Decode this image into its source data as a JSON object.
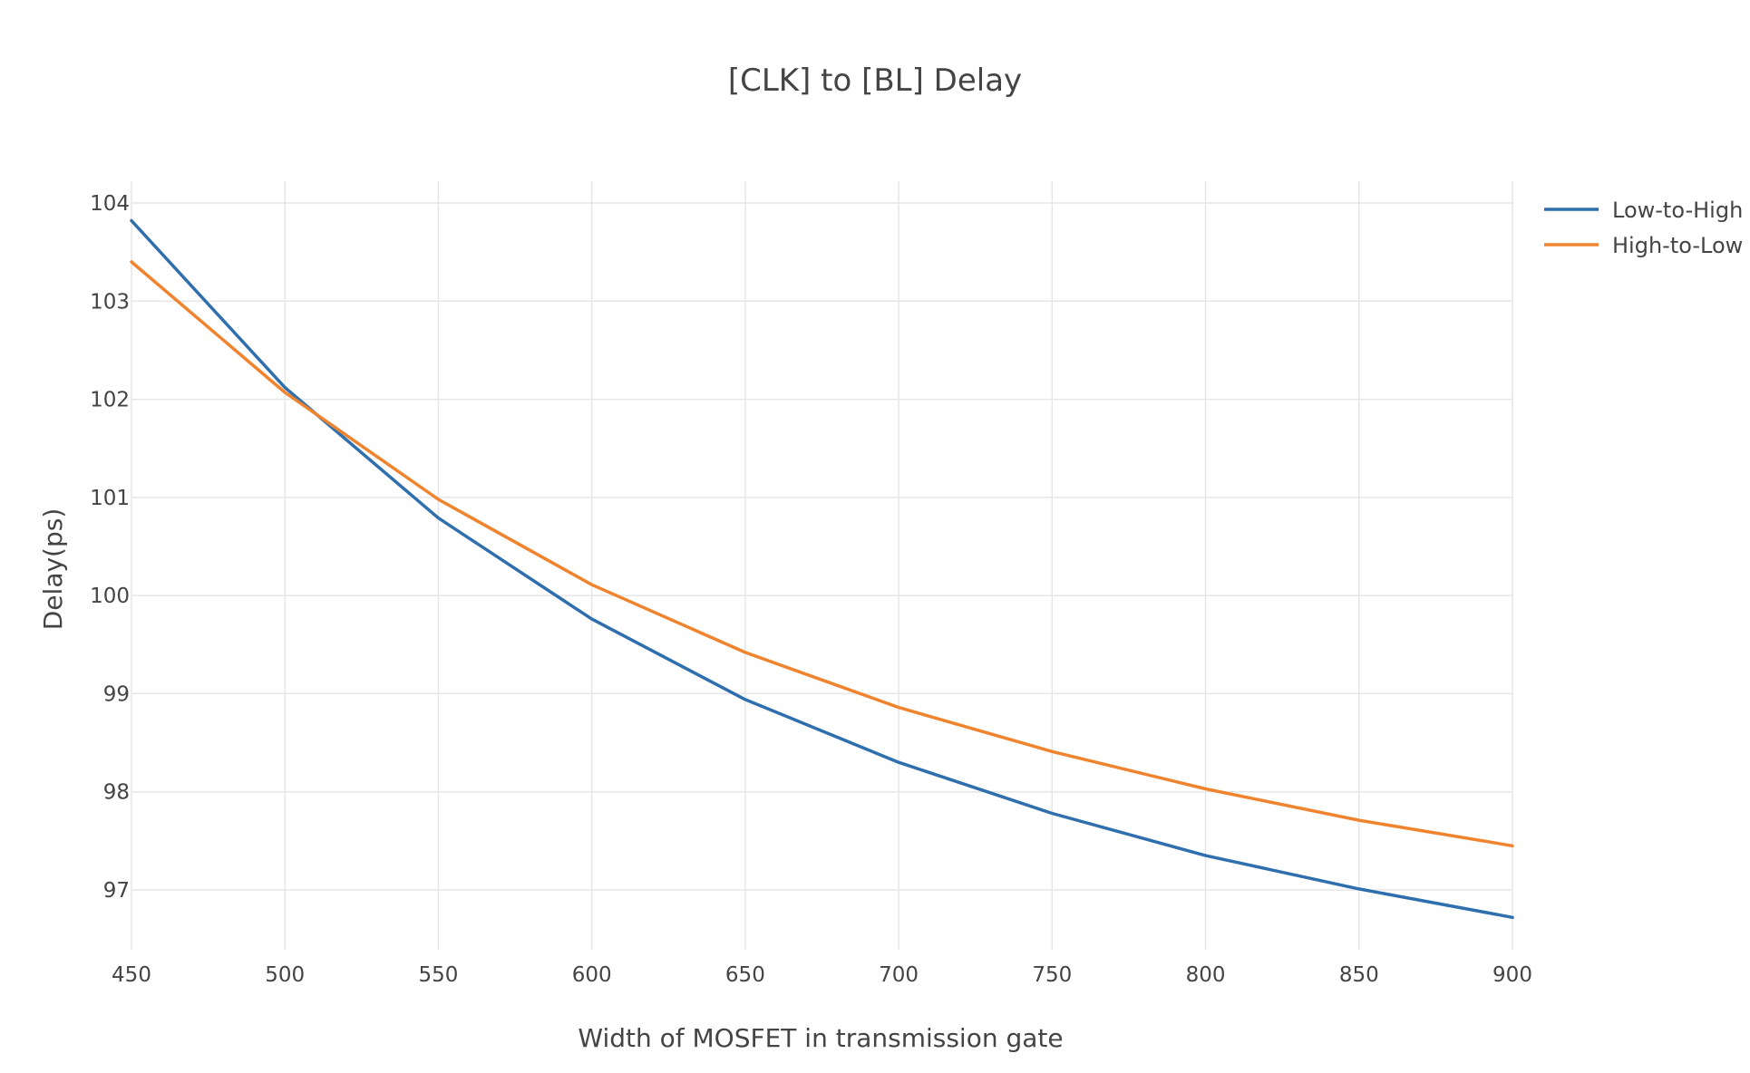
{
  "chart_data": {
    "type": "line",
    "title": "[CLK] to [BL] Delay",
    "xlabel": "Width of MOSFET in transmission gate",
    "ylabel": "Delay(ps)",
    "x": [
      450,
      500,
      550,
      600,
      650,
      700,
      750,
      800,
      850,
      900
    ],
    "xlim": [
      450,
      900
    ],
    "ylim": [
      96.3,
      104.2
    ],
    "xticks": [
      450,
      500,
      550,
      600,
      650,
      700,
      750,
      800,
      850,
      900
    ],
    "yticks": [
      97,
      98,
      99,
      100,
      101,
      102,
      103,
      104
    ],
    "grid": true,
    "legend_position": "top-right",
    "series": [
      {
        "name": "Low-to-High",
        "color": "#2f6fae",
        "values": [
          103.82,
          102.12,
          100.79,
          99.76,
          98.94,
          98.3,
          97.78,
          97.35,
          97.01,
          96.72
        ]
      },
      {
        "name": "High-to-Low",
        "color": "#f0842e",
        "values": [
          103.4,
          102.07,
          100.98,
          100.11,
          99.42,
          98.86,
          98.41,
          98.03,
          97.71,
          97.45
        ]
      }
    ]
  }
}
